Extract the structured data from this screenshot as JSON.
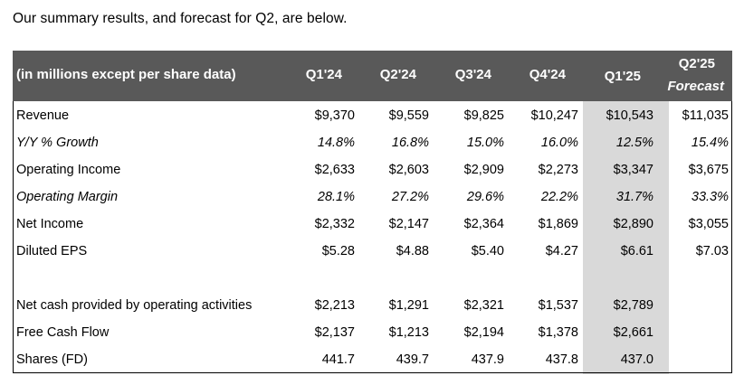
{
  "intro": "Our summary results, and forecast for Q2, are below.",
  "header": {
    "label": "(in millions except per share data)",
    "columns": [
      "Q1'24",
      "Q2'24",
      "Q3'24",
      "Q4'24",
      "Q1'25"
    ],
    "forecast_line1": "Q2'25",
    "forecast_line2": "Forecast"
  },
  "rows": [
    {
      "label": "Revenue",
      "values": [
        "$9,370",
        "$9,559",
        "$9,825",
        "$10,247",
        "$10,543",
        "$11,035"
      ]
    },
    {
      "label": "Y/Y % Growth",
      "values": [
        "14.8%",
        "16.8%",
        "15.0%",
        "16.0%",
        "12.5%",
        "15.4%"
      ]
    },
    {
      "label": "Operating Income",
      "values": [
        "$2,633",
        "$2,603",
        "$2,909",
        "$2,273",
        "$3,347",
        "$3,675"
      ]
    },
    {
      "label": "Operating Margin",
      "values": [
        "28.1%",
        "27.2%",
        "29.6%",
        "22.2%",
        "31.7%",
        "33.3%"
      ]
    },
    {
      "label": "Net Income",
      "values": [
        "$2,332",
        "$2,147",
        "$2,364",
        "$1,869",
        "$2,890",
        "$3,055"
      ]
    },
    {
      "label": "Diluted EPS",
      "values": [
        "$5.28",
        "$4.88",
        "$5.40",
        "$4.27",
        "$6.61",
        "$7.03"
      ]
    },
    {
      "label": "Net cash provided by operating activities",
      "values": [
        "$2,213",
        "$1,291",
        "$2,321",
        "$1,537",
        "$2,789",
        ""
      ]
    },
    {
      "label": "Free Cash Flow",
      "values": [
        "$2,137",
        "$1,213",
        "$2,194",
        "$1,378",
        "$2,661",
        ""
      ]
    },
    {
      "label": "Shares (FD)",
      "values": [
        "441.7",
        "439.7",
        "437.9",
        "437.8",
        "437.0",
        ""
      ]
    }
  ]
}
